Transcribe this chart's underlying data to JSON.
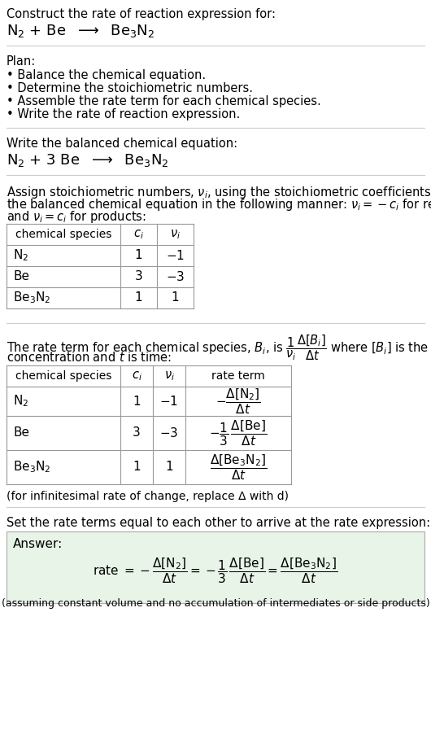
{
  "title_line1": "Construct the rate of reaction expression for:",
  "plan_header": "Plan:",
  "plan_items": [
    "• Balance the chemical equation.",
    "• Determine the stoichiometric numbers.",
    "• Assemble the rate term for each chemical species.",
    "• Write the rate of reaction expression."
  ],
  "balanced_header": "Write the balanced chemical equation:",
  "assign_text1": "Assign stoichiometric numbers, ",
  "assign_text2": "the balanced chemical equation in the following manner: ",
  "assign_text3": "and ",
  "infinitesimal_note": "(for infinitesimal rate of change, replace Δ with d)",
  "set_equal_text": "Set the rate terms equal to each other to arrive at the rate expression:",
  "answer_label": "Answer:",
  "answer_box_color": "#e8f4e8",
  "background_color": "#ffffff",
  "text_color": "#000000",
  "table_border_color": "#999999",
  "separator_color": "#cccccc"
}
